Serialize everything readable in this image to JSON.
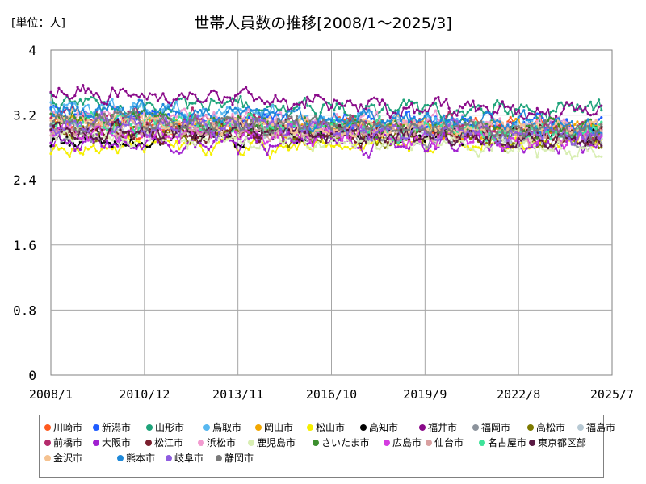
{
  "chart_data": {
    "type": "line",
    "title": "世帯人員数の推移[2008/1～2025/3]",
    "unit_label": "[単位：人]",
    "xlabel": "",
    "ylabel": "",
    "ylim": [
      0,
      4
    ],
    "xlim": [
      "2008/1",
      "2025/7"
    ],
    "yticks": [
      "0",
      "0.8",
      "1.6",
      "2.4",
      "3.2",
      "4"
    ],
    "xticks": [
      "2008/1",
      "2010/12",
      "2013/11",
      "2016/10",
      "2019/9",
      "2022/8",
      "2025/7"
    ],
    "grid": true,
    "legend_position": "bottom",
    "series": [
      {
        "name": "川崎市",
        "color": "#ff5a1f",
        "start": 3.05,
        "end": 3.05
      },
      {
        "name": "新潟市",
        "color": "#1f5cff",
        "start": 3.2,
        "end": 3.05
      },
      {
        "name": "山形市",
        "color": "#1ea37a",
        "start": 3.35,
        "end": 3.25
      },
      {
        "name": "鳥取市",
        "color": "#58b8f0",
        "start": 3.3,
        "end": 3.0
      },
      {
        "name": "岡山市",
        "color": "#f2a700",
        "start": 3.1,
        "end": 3.0
      },
      {
        "name": "松山市",
        "color": "#f5ef00",
        "start": 2.8,
        "end": 2.85
      },
      {
        "name": "高知市",
        "color": "#000000",
        "start": 2.9,
        "end": 3.0
      },
      {
        "name": "福井市",
        "color": "#8a0a8a",
        "start": 3.5,
        "end": 3.2
      },
      {
        "name": "福岡市",
        "color": "#8c939c",
        "start": 3.0,
        "end": 2.9
      },
      {
        "name": "高松市",
        "color": "#7d7a00",
        "start": 3.0,
        "end": 2.9
      },
      {
        "name": "福島市",
        "color": "#b7c9d4",
        "start": 3.1,
        "end": 2.95
      },
      {
        "name": "前橋市",
        "color": "#b52b6c",
        "start": 3.2,
        "end": 3.0
      },
      {
        "name": "大阪市",
        "color": "#a020d0",
        "start": 2.85,
        "end": 2.85
      },
      {
        "name": "松江市",
        "color": "#7a1f2e",
        "start": 3.0,
        "end": 2.95
      },
      {
        "name": "浜松市",
        "color": "#f29bd0",
        "start": 3.2,
        "end": 3.05
      },
      {
        "name": "鹿児島市",
        "color": "#d8eeb2",
        "start": 2.95,
        "end": 2.8
      },
      {
        "name": "さいたま市",
        "color": "#3c8f2e",
        "start": 3.15,
        "end": 3.0
      },
      {
        "name": "広島市",
        "color": "#d43ce0",
        "start": 3.0,
        "end": 2.9
      },
      {
        "name": "仙台市",
        "color": "#d9a0a0",
        "start": 3.05,
        "end": 2.95
      },
      {
        "name": "名古屋市",
        "color": "#3ee39a",
        "start": 3.1,
        "end": 3.0
      },
      {
        "name": "東京都区部",
        "color": "#5a1a44",
        "start": 3.0,
        "end": 2.9
      },
      {
        "name": "金沢市",
        "color": "#f5c290",
        "start": 3.15,
        "end": 3.0
      },
      {
        "name": "熊本市",
        "color": "#1e88d8",
        "start": 3.3,
        "end": 3.05
      },
      {
        "name": "岐阜市",
        "color": "#8f5ce0",
        "start": 3.1,
        "end": 2.95
      },
      {
        "name": "静岡市",
        "color": "#7a7a7a",
        "start": 3.15,
        "end": 3.0
      }
    ]
  }
}
